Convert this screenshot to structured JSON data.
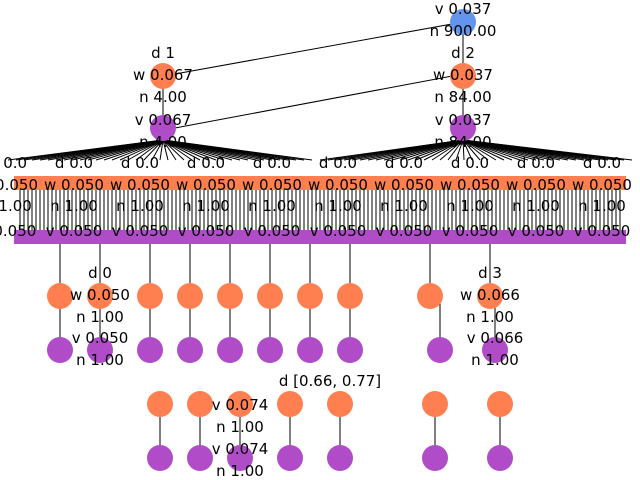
{
  "colors": {
    "edge": "#000000",
    "root_node": "#6495ED",
    "orange_node": "#FF7F50",
    "purple_node": "#B04CC8",
    "blue_node": "#6495ED",
    "label": "#000000"
  },
  "nodes": [
    {
      "id": "root",
      "color": "blue",
      "lines": [
        "v 0.037",
        "n 900.00"
      ]
    },
    {
      "id": "d1",
      "color": "orange",
      "lines": [
        "d 1",
        "w 0.067",
        "n 4.00"
      ]
    },
    {
      "id": "d1-child",
      "color": "purple",
      "lines": [
        "v 0.067",
        "n 4.00"
      ]
    },
    {
      "id": "d2",
      "color": "orange",
      "lines": [
        "d 2",
        "w 0.037",
        "n 84.00"
      ]
    },
    {
      "id": "d2-child",
      "color": "purple",
      "lines": [
        "v 0.037",
        "n 84.00"
      ]
    },
    {
      "id": "band-d-row",
      "color": "orange",
      "lines": [
        "d 0.0"
      ]
    },
    {
      "id": "band-w-row",
      "color": "orange",
      "lines": [
        "w 0.050"
      ]
    },
    {
      "id": "band-n-row",
      "color": "orange",
      "lines": [
        "n 1.00"
      ]
    },
    {
      "id": "band-v-row",
      "color": "purple",
      "lines": [
        "v 0.050"
      ]
    },
    {
      "id": "mid-d-0",
      "color": "orange",
      "lines": [
        "d 0",
        "w 0.050",
        "n 1.00"
      ]
    },
    {
      "id": "mid-d-0-child",
      "color": "purple",
      "lines": [
        "v 0.050",
        "n 1.00"
      ]
    },
    {
      "id": "mid-d-3",
      "color": "orange",
      "lines": [
        "d 3",
        "w 0.066",
        "n 1.00"
      ]
    },
    {
      "id": "mid-d-3-child",
      "color": "purple",
      "lines": [
        "v 0.066",
        "n 1.00"
      ]
    },
    {
      "id": "range-row",
      "color": "orange",
      "lines": [
        "d [0.66, 0.77]"
      ]
    },
    {
      "id": "low-orange",
      "color": "orange",
      "lines": [
        "v 0.074",
        "n 1.00"
      ]
    },
    {
      "id": "low-purple",
      "color": "purple",
      "lines": [
        "v 0.074",
        "n 1.00"
      ]
    }
  ]
}
